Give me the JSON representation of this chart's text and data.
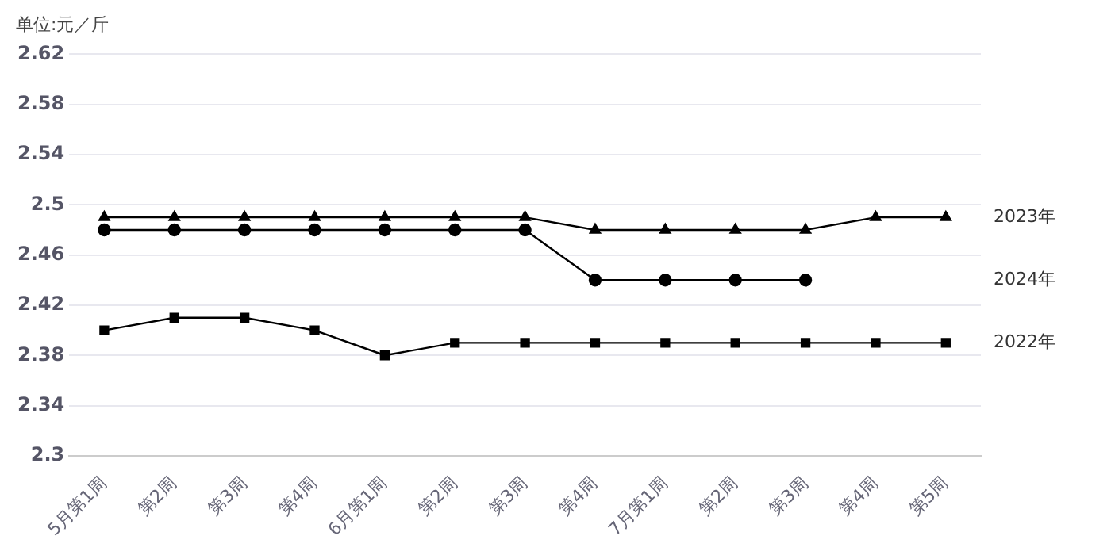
{
  "chart_data": {
    "type": "line",
    "ylabel": "单位:元／斤",
    "categories": [
      "5月第1周",
      "第2周",
      "第3周",
      "第4周",
      "6月第1周",
      "第2周",
      "第3周",
      "第4周",
      "7月第1周",
      "第2周",
      "第3周",
      "第4周",
      "第5周"
    ],
    "series": [
      {
        "name": "2023年",
        "color": "#000000",
        "marker": "triangle",
        "values": [
          2.49,
          2.49,
          2.49,
          2.49,
          2.49,
          2.49,
          2.49,
          2.48,
          2.48,
          2.48,
          2.48,
          2.49,
          2.49
        ]
      },
      {
        "name": "2024年",
        "color": "#000000",
        "marker": "circle",
        "values": [
          2.48,
          2.48,
          2.48,
          2.48,
          2.48,
          2.48,
          2.48,
          2.44,
          2.44,
          2.44,
          2.44,
          null,
          null
        ]
      },
      {
        "name": "2022年",
        "color": "#000000",
        "marker": "square",
        "values": [
          2.4,
          2.41,
          2.41,
          2.4,
          2.38,
          2.39,
          2.39,
          2.39,
          2.39,
          2.39,
          2.39,
          2.39,
          2.39
        ]
      }
    ],
    "ylim": [
      2.3,
      2.62
    ],
    "yticks": [
      2.3,
      2.34,
      2.38,
      2.42,
      2.46,
      2.5,
      2.54,
      2.58,
      2.62
    ],
    "grid": "y",
    "legend": false
  }
}
